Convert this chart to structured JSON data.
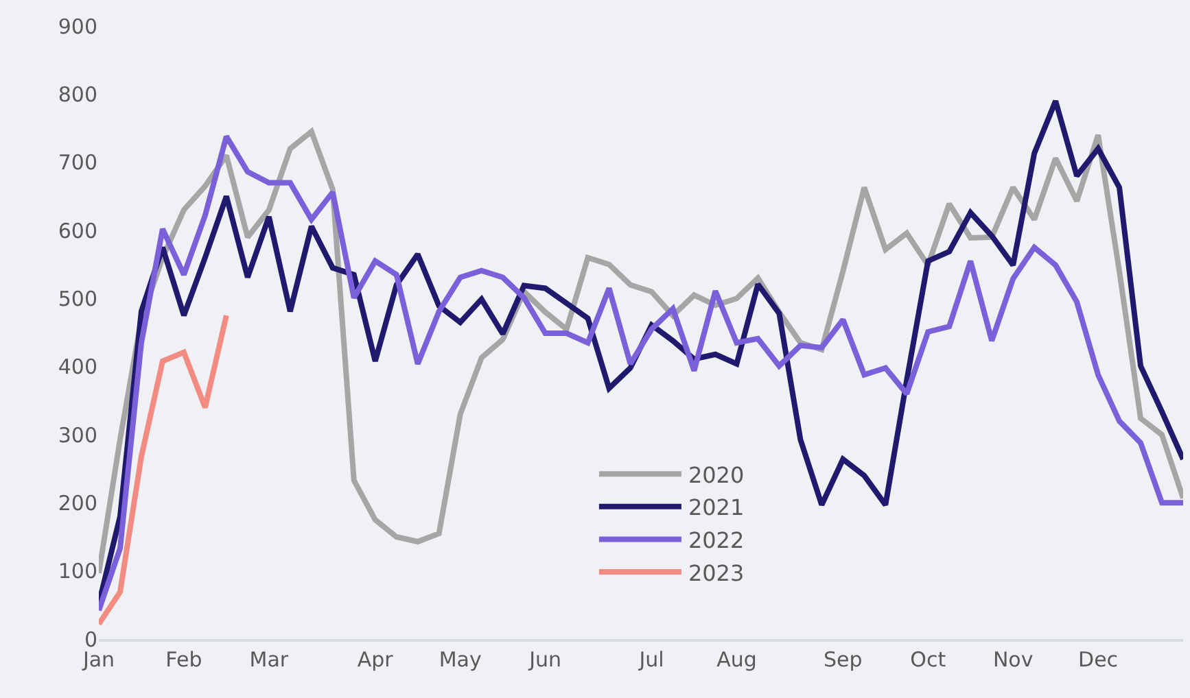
{
  "chart_data": {
    "type": "line",
    "categories": [
      "Jan",
      null,
      null,
      null,
      "Feb",
      null,
      null,
      null,
      "Mar",
      null,
      null,
      null,
      null,
      "Apr",
      null,
      null,
      null,
      "May",
      null,
      null,
      null,
      "Jun",
      null,
      null,
      null,
      null,
      "Jul",
      null,
      null,
      null,
      "Aug",
      null,
      null,
      null,
      null,
      "Sep",
      null,
      null,
      null,
      "Oct",
      null,
      null,
      null,
      "Nov",
      null,
      null,
      null,
      "Dec",
      null,
      null,
      null,
      null
    ],
    "ylim": [
      0,
      900
    ],
    "yticks": [
      0,
      100,
      200,
      300,
      400,
      500,
      600,
      700,
      800,
      900
    ],
    "grid": false,
    "legend": "bottom",
    "marker": "none",
    "line_style": "solid",
    "series": [
      {
        "name": "2020",
        "color": "#a6a6a6",
        "values": [
          97,
          293,
          470,
          560,
          630,
          665,
          710,
          590,
          630,
          720,
          745,
          660,
          233,
          175,
          150,
          143,
          155,
          330,
          413,
          440,
          510,
          480,
          455,
          560,
          550,
          520,
          510,
          475,
          505,
          490,
          500,
          530,
          480,
          435,
          425,
          540,
          663,
          572,
          596,
          549,
          639,
          589,
          590,
          663,
          616,
          706,
          643,
          740,
          540,
          324,
          300,
          207
        ]
      },
      {
        "name": "2021",
        "color": "#1f1a6e",
        "values": [
          52,
          180,
          481,
          575,
          475,
          560,
          650,
          531,
          620,
          481,
          606,
          545,
          535,
          408,
          520,
          565,
          489,
          465,
          499,
          448,
          519,
          515,
          493,
          471,
          368,
          398,
          461,
          438,
          411,
          418,
          404,
          521,
          478,
          293,
          197,
          264,
          240,
          197,
          380,
          555,
          569,
          626,
          592,
          549,
          713,
          790,
          680,
          720,
          663,
          401,
          334,
          264
        ]
      },
      {
        "name": "2022",
        "color": "#7b61d9",
        "values": [
          42,
          133,
          435,
          602,
          535,
          622,
          738,
          686,
          670,
          670,
          616,
          656,
          501,
          555,
          535,
          404,
          481,
          531,
          541,
          531,
          501,
          449,
          449,
          435,
          515,
          404,
          455,
          485,
          394,
          511,
          435,
          441,
          401,
          431,
          428,
          469,
          388,
          398,
          360,
          451,
          459,
          555,
          438,
          529,
          575,
          549,
          495,
          388,
          320,
          288,
          200,
          200
        ]
      },
      {
        "name": "2023",
        "color": "#f28b82",
        "values": [
          22,
          69,
          268,
          408,
          421,
          340,
          475,
          null,
          null,
          null,
          null,
          null,
          null,
          null,
          null,
          null,
          null,
          null,
          null,
          null,
          null,
          null,
          null,
          null,
          null,
          null,
          null,
          null,
          null,
          null,
          null,
          null,
          null,
          null,
          null,
          null,
          null,
          null,
          null,
          null,
          null,
          null,
          null,
          null,
          null,
          null,
          null,
          null,
          null,
          null,
          null,
          null
        ]
      }
    ]
  }
}
